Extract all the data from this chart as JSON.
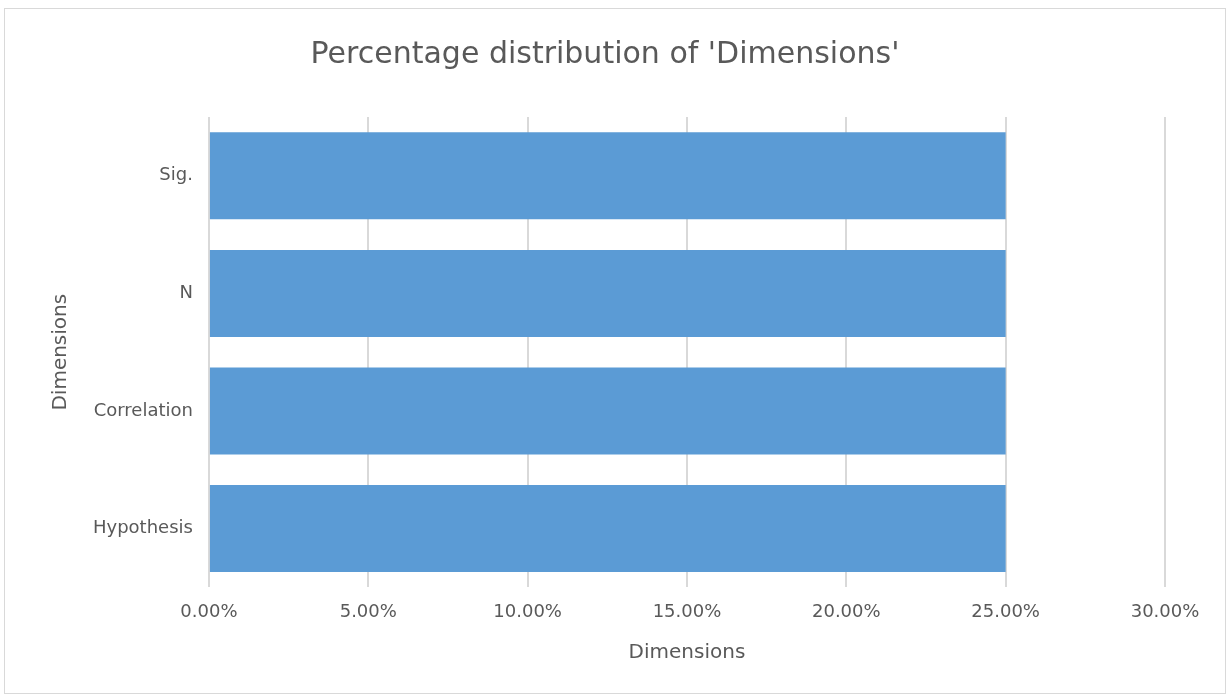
{
  "chart_data": {
    "type": "bar",
    "orientation": "horizontal",
    "title": "Percentage distribution of 'Dimensions'",
    "xlabel": "Dimensions",
    "ylabel": "Dimensions",
    "categories": [
      "Sig.",
      "N",
      "Correlation",
      "Hypothesis"
    ],
    "values": [
      25,
      25,
      25,
      25
    ],
    "color": "#5b9bd5",
    "xlim": [
      0,
      30
    ],
    "xticks": [
      {
        "value": 0,
        "label": "0.00%"
      },
      {
        "value": 5,
        "label": "5.00%"
      },
      {
        "value": 10,
        "label": "10.00%"
      },
      {
        "value": 15,
        "label": "15.00%"
      },
      {
        "value": 20,
        "label": "20.00%"
      },
      {
        "value": 25,
        "label": "25.00%"
      },
      {
        "value": 30,
        "label": "30.00%"
      }
    ],
    "grid": "x"
  }
}
